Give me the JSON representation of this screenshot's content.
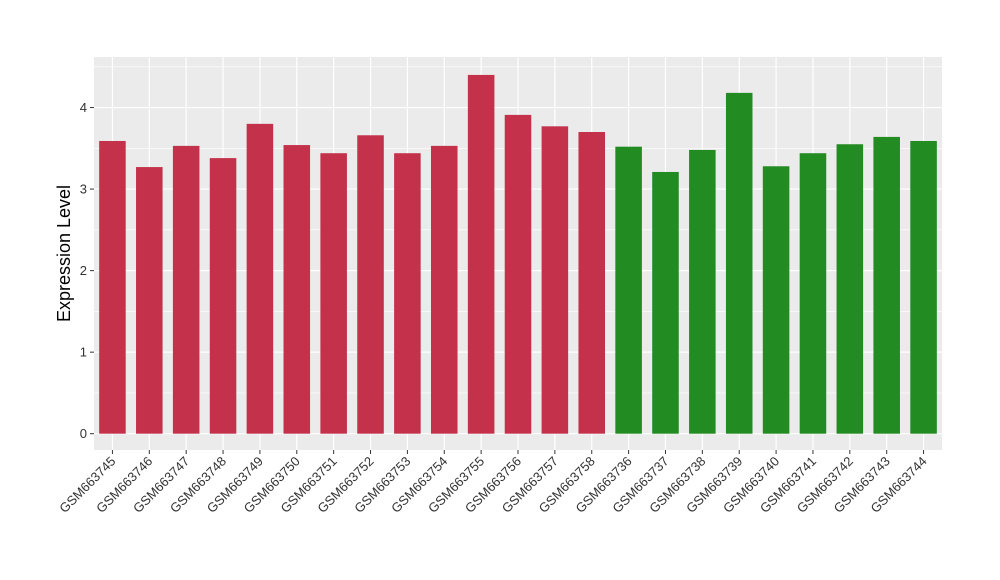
{
  "chart_data": {
    "type": "bar",
    "ylabel": "Expression Level",
    "xlabel": "",
    "ylim": [
      -0.2,
      4.62
    ],
    "yticks": [
      0,
      1,
      2,
      3,
      4
    ],
    "grid": true,
    "colors": {
      "group1": "#C4314B",
      "group2": "#228B22",
      "panel": "#EBEBEB",
      "grid": "#FFFFFF"
    },
    "categories": [
      "GSM663745",
      "GSM663746",
      "GSM663747",
      "GSM663748",
      "GSM663749",
      "GSM663750",
      "GSM663751",
      "GSM663752",
      "GSM663753",
      "GSM663754",
      "GSM663755",
      "GSM663756",
      "GSM663757",
      "GSM663758",
      "GSM663736",
      "GSM663737",
      "GSM663738",
      "GSM663739",
      "GSM663740",
      "GSM663741",
      "GSM663742",
      "GSM663743",
      "GSM663744"
    ],
    "values": [
      3.59,
      3.27,
      3.53,
      3.38,
      3.8,
      3.54,
      3.44,
      3.66,
      3.44,
      3.53,
      4.4,
      3.91,
      3.77,
      3.7,
      3.52,
      3.21,
      3.48,
      4.18,
      3.28,
      3.44,
      3.55,
      3.64,
      3.59
    ],
    "groups": [
      "group1",
      "group1",
      "group1",
      "group1",
      "group1",
      "group1",
      "group1",
      "group1",
      "group1",
      "group1",
      "group1",
      "group1",
      "group1",
      "group1",
      "group2",
      "group2",
      "group2",
      "group2",
      "group2",
      "group2",
      "group2",
      "group2",
      "group2"
    ]
  }
}
